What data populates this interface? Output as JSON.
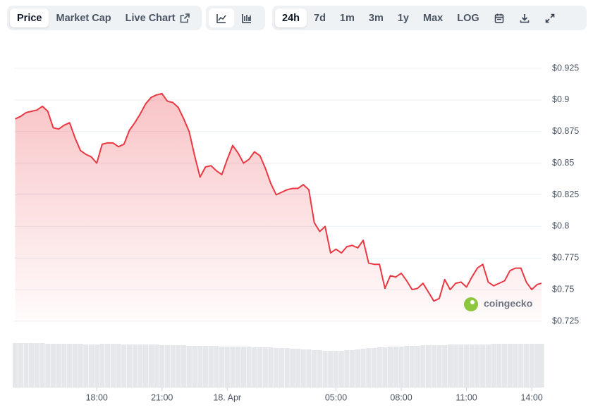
{
  "toolbar": {
    "tabs": [
      "Price",
      "Market Cap",
      "Live Chart"
    ],
    "ranges": [
      "24h",
      "7d",
      "1m",
      "3m",
      "1y",
      "Max",
      "LOG"
    ]
  },
  "watermark": "coingecko",
  "chart_data": {
    "type": "line",
    "color": "#ea3943",
    "volume_color": "#e5e7eb",
    "x": [
      -9.75,
      -9.5,
      -9.25,
      -9,
      -8.75,
      -8.5,
      -8.25,
      -8,
      -7.75,
      -7.5,
      -7.25,
      -7,
      -6.75,
      -6.5,
      -6.25,
      -6,
      -5.75,
      -5.5,
      -5.25,
      -5,
      -4.75,
      -4.5,
      -4.25,
      -4,
      -3.75,
      -3.5,
      -3.25,
      -3,
      -2.75,
      -2.5,
      -2.25,
      -2,
      -1.75,
      -1.5,
      -1.25,
      -1,
      -0.75,
      -0.5,
      -0.25,
      0,
      0.25,
      0.5,
      0.75,
      1,
      1.25,
      1.5,
      1.75,
      2,
      2.25,
      2.5,
      2.75,
      3,
      3.25,
      3.5,
      3.75,
      4,
      4.25,
      4.5,
      4.75,
      5,
      5.25,
      5.5,
      5.75,
      6,
      6.25,
      6.5,
      6.75,
      7,
      7.25,
      7.5,
      7.75,
      8,
      8.25,
      8.5,
      8.75,
      9,
      9.25,
      9.5,
      9.75,
      10,
      10.25,
      10.5,
      10.75,
      11,
      11.25,
      11.5,
      11.75,
      12,
      12.25,
      12.5,
      12.75,
      13,
      13.25,
      13.5,
      13.75,
      14,
      14.25,
      14.45
    ],
    "values": [
      0.885,
      0.887,
      0.89,
      0.891,
      0.892,
      0.895,
      0.891,
      0.878,
      0.877,
      0.88,
      0.882,
      0.87,
      0.86,
      0.857,
      0.855,
      0.85,
      0.865,
      0.866,
      0.866,
      0.863,
      0.865,
      0.876,
      0.882,
      0.889,
      0.897,
      0.902,
      0.904,
      0.905,
      0.899,
      0.898,
      0.894,
      0.885,
      0.875,
      0.856,
      0.839,
      0.847,
      0.848,
      0.844,
      0.841,
      0.853,
      0.864,
      0.858,
      0.85,
      0.853,
      0.859,
      0.856,
      0.846,
      0.834,
      0.825,
      0.827,
      0.829,
      0.83,
      0.83,
      0.833,
      0.829,
      0.803,
      0.796,
      0.8,
      0.779,
      0.782,
      0.779,
      0.784,
      0.785,
      0.783,
      0.789,
      0.771,
      0.77,
      0.77,
      0.751,
      0.761,
      0.76,
      0.763,
      0.757,
      0.75,
      0.751,
      0.755,
      0.748,
      0.741,
      0.743,
      0.758,
      0.75,
      0.755,
      0.756,
      0.752,
      0.76,
      0.767,
      0.77,
      0.756,
      0.753,
      0.755,
      0.757,
      0.765,
      0.767,
      0.767,
      0.756,
      0.75,
      0.754,
      0.755
    ],
    "volumes": [
      63,
      63,
      63,
      63,
      63,
      63,
      62,
      62,
      62,
      62,
      62,
      62,
      62,
      61,
      61,
      61,
      62,
      62,
      62,
      62,
      61,
      61,
      61,
      61,
      61,
      61,
      61,
      60,
      60,
      60,
      60,
      60,
      59,
      59,
      59,
      59,
      59,
      59,
      58,
      58,
      58,
      58,
      58,
      58,
      57,
      57,
      57,
      57,
      56,
      56,
      56,
      55,
      55,
      54,
      54,
      53,
      53,
      52,
      52,
      52,
      52,
      53,
      53,
      54,
      55,
      56,
      56,
      57,
      57,
      58,
      58,
      58,
      59,
      59,
      59,
      60,
      60,
      60,
      60,
      60,
      61,
      61,
      61,
      61,
      61,
      61,
      61,
      61,
      62,
      62,
      62,
      62,
      62,
      62,
      62,
      62,
      62,
      62
    ],
    "xlim": [
      -9.8,
      14.45
    ],
    "xticks": [
      {
        "value": -6,
        "label": "18:00"
      },
      {
        "value": -3,
        "label": "21:00"
      },
      {
        "value": 0,
        "label": "18. Apr"
      },
      {
        "value": 5,
        "label": "05:00"
      },
      {
        "value": 8,
        "label": "08:00"
      },
      {
        "value": 11,
        "label": "11:00"
      },
      {
        "value": 14,
        "label": "14:00"
      }
    ],
    "ylim": [
      0.725,
      0.925
    ],
    "yticks": [
      {
        "value": 0.725,
        "label": "$0.725"
      },
      {
        "value": 0.75,
        "label": "$0.75"
      },
      {
        "value": 0.775,
        "label": "$0.775"
      },
      {
        "value": 0.8,
        "label": "$0.8"
      },
      {
        "value": 0.825,
        "label": "$0.825"
      },
      {
        "value": 0.85,
        "label": "$0.85"
      },
      {
        "value": 0.875,
        "label": "$0.875"
      },
      {
        "value": 0.9,
        "label": "$0.9"
      },
      {
        "value": 0.925,
        "label": "$0.925"
      }
    ],
    "grid": true
  }
}
